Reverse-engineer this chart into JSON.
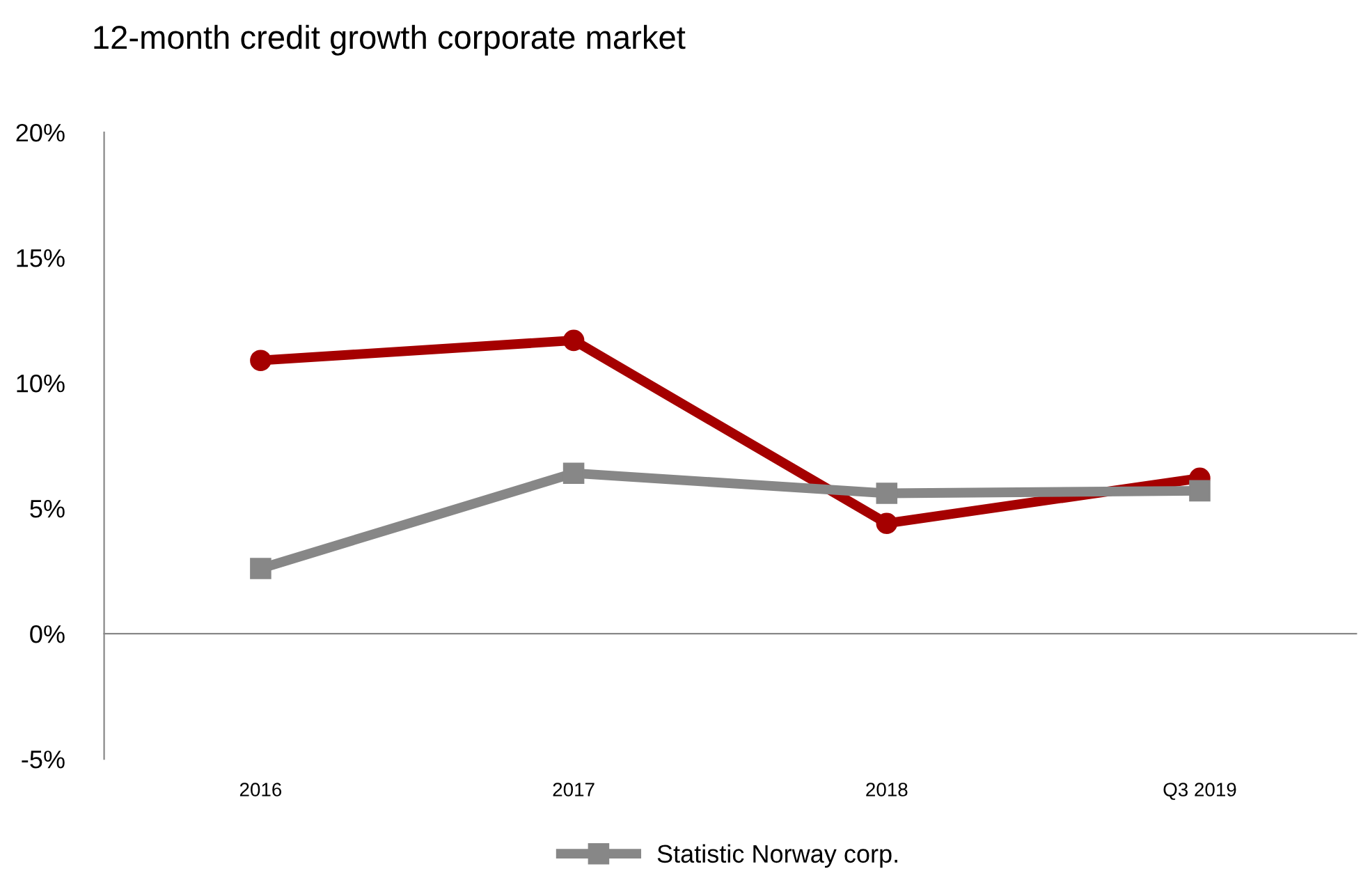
{
  "chart_data": {
    "type": "line",
    "title": "12-month credit growth corporate market",
    "categories": [
      "2016",
      "2017",
      "2018",
      "Q3 2019"
    ],
    "series": [
      {
        "color": "#a50000",
        "values": [
          10.9,
          11.7,
          4.4,
          6.2
        ],
        "marker": "circle"
      },
      {
        "name": "Statistic Norway corp.",
        "color": "#878787",
        "values": [
          2.6,
          6.4,
          5.6,
          5.7
        ],
        "marker": "square"
      }
    ],
    "ylim": [
      -5,
      20
    ],
    "yticks": [
      {
        "value": -5,
        "label": "-5%"
      },
      {
        "value": 0,
        "label": "0%"
      },
      {
        "value": 5,
        "label": "5%"
      },
      {
        "value": 10,
        "label": "10%"
      },
      {
        "value": 15,
        "label": "15%"
      },
      {
        "value": 20,
        "label": "20%"
      }
    ],
    "legend": "bottom"
  }
}
